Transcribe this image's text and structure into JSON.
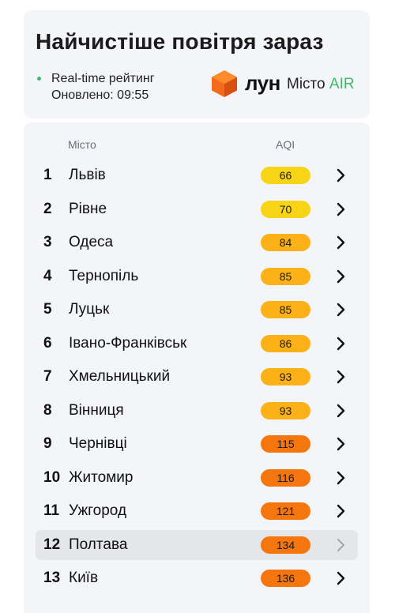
{
  "header": {
    "title": "Найчистіше повітря зараз",
    "status_line1": "Real-time рейтинг",
    "status_line2": "Оновлено: 09:55",
    "brand_name": "лун",
    "brand_sub": "Місто",
    "brand_sub_accent": "AIR"
  },
  "columns": {
    "city": "Місто",
    "aqi": "AQI"
  },
  "colors": {
    "aqi_yellow": "#f7d416",
    "aqi_amber": "#fbb117",
    "aqi_orange": "#f5760f",
    "live_dot": "#3dbb6b",
    "brand_orange": "#f26a1b",
    "air_green": "#42b86b",
    "selected_row": "#e4e6ea"
  },
  "rows": [
    {
      "rank": "1",
      "city": "Львів",
      "aqi": "66",
      "level": "yellow",
      "selected": false
    },
    {
      "rank": "2",
      "city": "Рівне",
      "aqi": "70",
      "level": "yellow",
      "selected": false
    },
    {
      "rank": "3",
      "city": "Одеса",
      "aqi": "84",
      "level": "amber",
      "selected": false
    },
    {
      "rank": "4",
      "city": "Тернопіль",
      "aqi": "85",
      "level": "amber",
      "selected": false
    },
    {
      "rank": "5",
      "city": "Луцьк",
      "aqi": "85",
      "level": "amber",
      "selected": false
    },
    {
      "rank": "6",
      "city": "Івано-Франківськ",
      "aqi": "86",
      "level": "amber",
      "selected": false
    },
    {
      "rank": "7",
      "city": "Хмельницький",
      "aqi": "93",
      "level": "amber",
      "selected": false
    },
    {
      "rank": "8",
      "city": "Вінниця",
      "aqi": "93",
      "level": "amber",
      "selected": false
    },
    {
      "rank": "9",
      "city": "Чернівці",
      "aqi": "115",
      "level": "orange",
      "selected": false
    },
    {
      "rank": "10",
      "city": "Житомир",
      "aqi": "116",
      "level": "orange",
      "selected": false
    },
    {
      "rank": "11",
      "city": "Ужгород",
      "aqi": "121",
      "level": "orange",
      "selected": false
    },
    {
      "rank": "12",
      "city": "Полтава",
      "aqi": "134",
      "level": "orange",
      "selected": true
    },
    {
      "rank": "13",
      "city": "Київ",
      "aqi": "136",
      "level": "orange",
      "selected": false
    }
  ],
  "icons": {
    "row_action": "chevron-right-icon",
    "brand": "cube-logo-icon",
    "status": "live-dot-icon"
  }
}
